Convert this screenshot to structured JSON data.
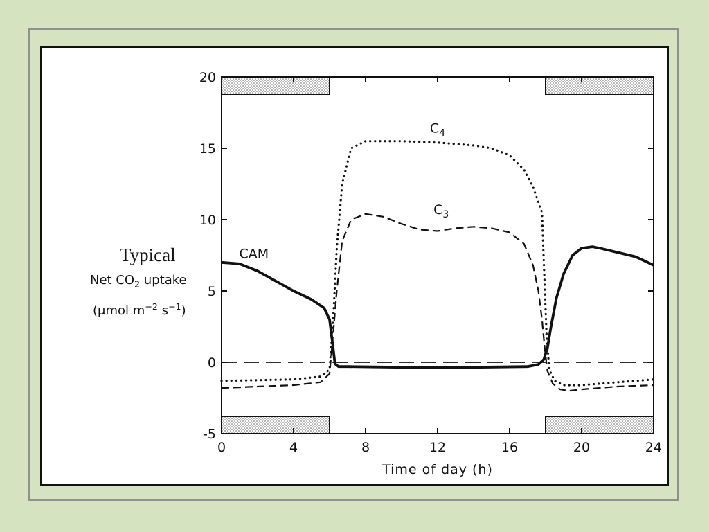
{
  "colors": {
    "background": "#d5e3c0",
    "frame_border": "#8e918c",
    "panel": "#ffffff",
    "ink": "#111111"
  },
  "ylabel": {
    "prefix": "Typical",
    "main_pre": "Net CO",
    "main_sub": "2",
    "main_post": " uptake",
    "unit_pre": "(",
    "unit_mu": "μ",
    "unit_mid": "mol m",
    "unit_sup1": "−2",
    "unit_s": " s",
    "unit_sup2": "−1",
    "unit_post": ")"
  },
  "chart_data": {
    "type": "line",
    "xlabel": "Time of day (h)",
    "xlim": [
      0,
      24
    ],
    "ylim": [
      -5,
      20
    ],
    "xticks": [
      0,
      4,
      8,
      12,
      16,
      20,
      24
    ],
    "yticks": [
      -5,
      0,
      5,
      10,
      15,
      20
    ],
    "xtick_labels": [
      "0",
      "4",
      "8",
      "12",
      "16",
      "20",
      "24"
    ],
    "ytick_labels": [
      "-5",
      "0",
      "5",
      "10",
      "15",
      "20"
    ],
    "night_bars": [
      {
        "start": 0,
        "end": 6
      },
      {
        "start": 18,
        "end": 24
      }
    ],
    "zero_line": 0,
    "series": [
      {
        "name": "CAM",
        "label_at": [
          1.8,
          7.3
        ],
        "style": "solid",
        "x": [
          0,
          1,
          2,
          3,
          4,
          5,
          5.7,
          6.0,
          6.15,
          6.3,
          6.5,
          7,
          10,
          14,
          17,
          17.6,
          17.9,
          18.1,
          18.3,
          18.6,
          19,
          19.5,
          20,
          20.6,
          21,
          22,
          23,
          24
        ],
        "y": [
          7,
          6.9,
          6.4,
          5.7,
          5.0,
          4.4,
          3.8,
          3.0,
          1.5,
          -0.1,
          -0.3,
          -0.3,
          -0.35,
          -0.35,
          -0.3,
          -0.15,
          0.2,
          1.0,
          2.5,
          4.5,
          6.2,
          7.5,
          8.0,
          8.1,
          8.0,
          7.7,
          7.4,
          6.8
        ]
      },
      {
        "name": "C",
        "name_sub": "3",
        "label_at": [
          12.2,
          10.4
        ],
        "style": "dashed",
        "x": [
          0,
          2,
          4,
          5.5,
          6.0,
          6.2,
          6.4,
          6.7,
          7.2,
          8,
          9,
          10,
          11,
          12,
          13,
          14,
          15,
          16,
          16.8,
          17.3,
          17.6,
          17.8,
          17.95,
          18.1,
          18.4,
          18.8,
          19.3,
          20,
          22,
          24
        ],
        "y": [
          -1.8,
          -1.7,
          -1.6,
          -1.4,
          -0.8,
          2.0,
          5.0,
          8.5,
          10.0,
          10.4,
          10.2,
          9.7,
          9.3,
          9.2,
          9.4,
          9.5,
          9.4,
          9.1,
          8.3,
          6.8,
          5.0,
          3.0,
          1.0,
          -0.6,
          -1.5,
          -1.9,
          -2.0,
          -1.9,
          -1.7,
          -1.6
        ]
      },
      {
        "name": "C",
        "name_sub": "4",
        "label_at": [
          12.0,
          16.1
        ],
        "style": "dotted",
        "x": [
          0,
          2,
          4,
          5.5,
          6.0,
          6.2,
          6.4,
          6.7,
          7.2,
          8,
          10,
          12,
          14,
          15,
          16,
          16.8,
          17.3,
          17.6,
          17.8,
          17.9,
          18.05,
          18.2,
          18.5,
          19,
          20,
          22,
          24
        ],
        "y": [
          -1.3,
          -1.25,
          -1.2,
          -1.0,
          -0.5,
          3.0,
          8.0,
          12.5,
          15.0,
          15.5,
          15.5,
          15.4,
          15.2,
          15.0,
          14.5,
          13.5,
          12.3,
          11.2,
          10.5,
          7.0,
          2.0,
          -0.5,
          -1.3,
          -1.6,
          -1.6,
          -1.4,
          -1.2
        ]
      }
    ]
  }
}
